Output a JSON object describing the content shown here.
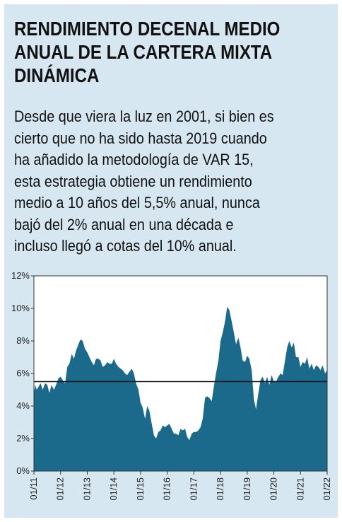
{
  "title": "RENDIMIENTO DECENAL MEDIO ANUAL DE LA CARTERA MIXTA DINÁMICA",
  "description_lines": [
    "Desde que viera la luz en 2001, si bien es",
    "cierto que no ha sido hasta 2019 cuando",
    "ha añadido la metodología de VAR 15,",
    "esta estrategia obtiene un rendimiento",
    "medio a 10 años del 5,5% anual, nunca",
    "bajó del 2% anual en una década e",
    "incluso llegó a cotas del 10% anual."
  ],
  "colors": {
    "background": "#d6e7f1",
    "area": "#1b6a8c",
    "reference_line": "#111111"
  },
  "chart_data": {
    "type": "area",
    "x_tick_labels": [
      "01/11",
      "01/12",
      "01/13",
      "01/14",
      "01/15",
      "01/16",
      "01/17",
      "01/18",
      "01/19",
      "01/20",
      "01/21",
      "01/22"
    ],
    "y_tick_labels": [
      "0%",
      "2%",
      "4%",
      "6%",
      "8%",
      "10%",
      "12%"
    ],
    "ylim": [
      0,
      12
    ],
    "xlim": [
      0,
      11
    ],
    "grid": false,
    "reference_line": 5.5,
    "series": [
      {
        "values": [
          [
            0.0,
            4.8
          ],
          [
            0.05,
            5.3
          ],
          [
            0.1,
            5.0
          ],
          [
            0.18,
            5.2
          ],
          [
            0.25,
            5.4
          ],
          [
            0.33,
            5.0
          ],
          [
            0.42,
            5.4
          ],
          [
            0.5,
            5.3
          ],
          [
            0.58,
            4.8
          ],
          [
            0.66,
            5.3
          ],
          [
            0.75,
            5.0
          ],
          [
            0.83,
            5.3
          ],
          [
            0.92,
            5.7
          ],
          [
            1.0,
            5.8
          ],
          [
            1.08,
            5.6
          ],
          [
            1.17,
            5.4
          ],
          [
            1.25,
            6.4
          ],
          [
            1.33,
            6.6
          ],
          [
            1.42,
            7.2
          ],
          [
            1.5,
            6.9
          ],
          [
            1.58,
            7.4
          ],
          [
            1.67,
            7.8
          ],
          [
            1.75,
            8.1
          ],
          [
            1.83,
            8.0
          ],
          [
            1.92,
            7.5
          ],
          [
            2.0,
            7.3
          ],
          [
            2.08,
            7.0
          ],
          [
            2.17,
            6.7
          ],
          [
            2.25,
            6.5
          ],
          [
            2.33,
            6.9
          ],
          [
            2.42,
            6.9
          ],
          [
            2.5,
            6.8
          ],
          [
            2.58,
            6.4
          ],
          [
            2.67,
            6.5
          ],
          [
            2.75,
            6.7
          ],
          [
            2.83,
            6.6
          ],
          [
            2.92,
            6.6
          ],
          [
            3.0,
            6.9
          ],
          [
            3.08,
            6.6
          ],
          [
            3.17,
            6.4
          ],
          [
            3.25,
            6.3
          ],
          [
            3.33,
            6.2
          ],
          [
            3.42,
            6.0
          ],
          [
            3.5,
            5.9
          ],
          [
            3.58,
            6.1
          ],
          [
            3.67,
            6.3
          ],
          [
            3.75,
            6.0
          ],
          [
            3.83,
            5.4
          ],
          [
            3.92,
            5.0
          ],
          [
            4.0,
            4.2
          ],
          [
            4.08,
            3.9
          ],
          [
            4.17,
            3.2
          ],
          [
            4.25,
            4.0
          ],
          [
            4.33,
            3.7
          ],
          [
            4.42,
            2.9
          ],
          [
            4.5,
            2.2
          ],
          [
            4.58,
            2.0
          ],
          [
            4.67,
            2.4
          ],
          [
            4.75,
            2.5
          ],
          [
            4.83,
            2.8
          ],
          [
            4.92,
            2.7
          ],
          [
            5.0,
            2.8
          ],
          [
            5.08,
            2.9
          ],
          [
            5.17,
            2.6
          ],
          [
            5.25,
            2.3
          ],
          [
            5.33,
            2.3
          ],
          [
            5.42,
            2.2
          ],
          [
            5.5,
            2.6
          ],
          [
            5.58,
            2.5
          ],
          [
            5.67,
            2.6
          ],
          [
            5.75,
            2.1
          ],
          [
            5.83,
            1.9
          ],
          [
            5.92,
            2.3
          ],
          [
            6.0,
            2.4
          ],
          [
            6.08,
            2.4
          ],
          [
            6.17,
            2.5
          ],
          [
            6.25,
            2.7
          ],
          [
            6.33,
            3.2
          ],
          [
            6.42,
            4.5
          ],
          [
            6.5,
            4.6
          ],
          [
            6.58,
            4.5
          ],
          [
            6.67,
            4.3
          ],
          [
            6.75,
            5.2
          ],
          [
            6.83,
            6.0
          ],
          [
            6.92,
            6.8
          ],
          [
            7.0,
            8.0
          ],
          [
            7.08,
            8.5
          ],
          [
            7.17,
            9.2
          ],
          [
            7.25,
            10.1
          ],
          [
            7.33,
            9.9
          ],
          [
            7.42,
            9.2
          ],
          [
            7.5,
            8.5
          ],
          [
            7.58,
            7.8
          ],
          [
            7.67,
            8.2
          ],
          [
            7.75,
            7.6
          ],
          [
            7.83,
            6.8
          ],
          [
            7.92,
            6.7
          ],
          [
            8.0,
            7.1
          ],
          [
            8.08,
            6.9
          ],
          [
            8.17,
            6.2
          ],
          [
            8.25,
            4.4
          ],
          [
            8.33,
            3.8
          ],
          [
            8.42,
            4.8
          ],
          [
            8.5,
            5.6
          ],
          [
            8.58,
            5.8
          ],
          [
            8.67,
            5.4
          ],
          [
            8.75,
            5.8
          ],
          [
            8.83,
            5.3
          ],
          [
            8.92,
            5.9
          ],
          [
            9.0,
            5.5
          ],
          [
            9.08,
            5.5
          ],
          [
            9.17,
            5.8
          ],
          [
            9.25,
            6.0
          ],
          [
            9.33,
            5.9
          ],
          [
            9.42,
            6.8
          ],
          [
            9.5,
            7.6
          ],
          [
            9.58,
            8.0
          ],
          [
            9.67,
            7.6
          ],
          [
            9.75,
            7.9
          ],
          [
            9.83,
            7.0
          ],
          [
            9.92,
            7.0
          ],
          [
            10.0,
            6.4
          ],
          [
            10.08,
            6.7
          ],
          [
            10.17,
            6.6
          ],
          [
            10.25,
            7.0
          ],
          [
            10.33,
            6.3
          ],
          [
            10.42,
            6.6
          ],
          [
            10.5,
            6.2
          ],
          [
            10.58,
            6.5
          ],
          [
            10.67,
            6.4
          ],
          [
            10.75,
            6.2
          ],
          [
            10.83,
            6.5
          ],
          [
            10.92,
            6.0
          ],
          [
            11.0,
            6.2
          ]
        ]
      }
    ]
  }
}
